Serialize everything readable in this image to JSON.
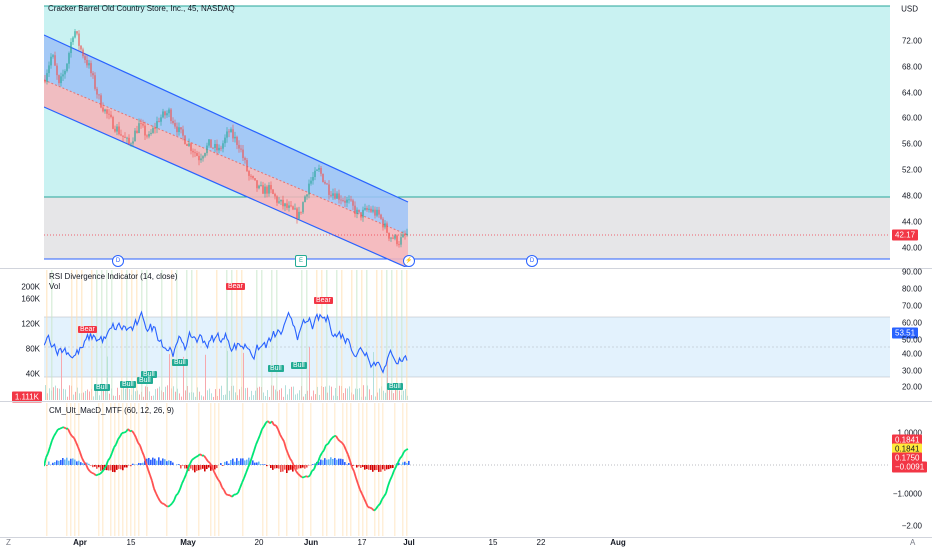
{
  "main": {
    "title": "Cracker Barrel Old Country Store, Inc., 45, NASDAQ",
    "currency": "USD",
    "price_ticks": [
      "72.00",
      "68.00",
      "64.00",
      "60.00",
      "56.00",
      "52.00",
      "48.00",
      "44.00",
      "40.00"
    ],
    "last_price": "42.17",
    "events": [
      "D",
      "E",
      "⚡",
      "D"
    ]
  },
  "rsi": {
    "title": "RSI Divergence Indicator (14, close)",
    "vol_label": "Vol",
    "ticks": [
      "90.00",
      "80.00",
      "70.00",
      "60.00",
      "50.00",
      "40.00",
      "30.00",
      "20.00"
    ],
    "value": "53.51",
    "vol_ticks": [
      "200K",
      "160K",
      "120K",
      "80K",
      "40K"
    ],
    "vol_value": "1.111K",
    "labels": [
      {
        "text": "Bear",
        "type": "bear"
      },
      {
        "text": "Bull",
        "type": "bull"
      },
      {
        "text": "Bull",
        "type": "bull"
      },
      {
        "text": "Bull",
        "type": "bull"
      },
      {
        "text": "Bull",
        "type": "bull"
      },
      {
        "text": "Bull",
        "type": "bull"
      },
      {
        "text": "Bear",
        "type": "bear"
      },
      {
        "text": "Bull",
        "type": "bull"
      },
      {
        "text": "Bull",
        "type": "bull"
      },
      {
        "text": "Bear",
        "type": "bear"
      },
      {
        "text": "Bull",
        "type": "bull"
      }
    ]
  },
  "macd": {
    "title": "CM_Ult_MacD_MTF (60, 12, 26, 9)",
    "ticks": [
      "1.0000",
      "−1.0000",
      "−2.00"
    ],
    "values": [
      "0.1841",
      "0.1841",
      "0.1750",
      "−0.0091"
    ]
  },
  "xaxis": {
    "labels": [
      "Apr",
      "15",
      "May",
      "20",
      "Jun",
      "17",
      "Jul",
      "15",
      "22",
      "Aug"
    ],
    "corner_left": "Z",
    "corner_right": "A"
  },
  "colors": {
    "channel_line": "#2962ff",
    "upper_fill": "#9ec2f7",
    "lower_fill": "#f7b4b8",
    "bg_cyan": "#c9f2f2",
    "bg_gray": "#e6e6e8",
    "bull": "#22ab94",
    "bear": "#f23645",
    "rsi_line": "#2962ff",
    "macd_up": "#00e676",
    "macd_down": "#ff5252"
  }
}
